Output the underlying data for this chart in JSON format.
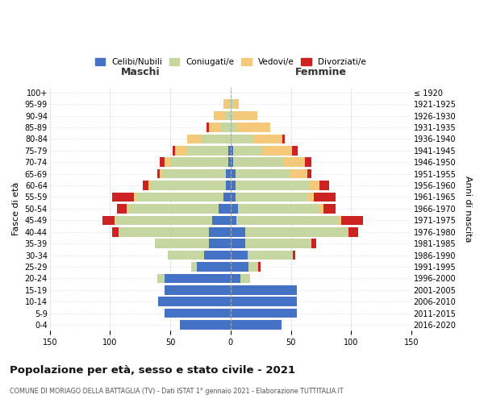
{
  "age_groups": [
    "0-4",
    "5-9",
    "10-14",
    "15-19",
    "20-24",
    "25-29",
    "30-34",
    "35-39",
    "40-44",
    "45-49",
    "50-54",
    "55-59",
    "60-64",
    "65-69",
    "70-74",
    "75-79",
    "80-84",
    "85-89",
    "90-94",
    "95-99",
    "100+"
  ],
  "birth_years": [
    "2016-2020",
    "2011-2015",
    "2006-2010",
    "2001-2005",
    "1996-2000",
    "1991-1995",
    "1986-1990",
    "1981-1985",
    "1976-1980",
    "1971-1975",
    "1966-1970",
    "1961-1965",
    "1956-1960",
    "1951-1955",
    "1946-1950",
    "1941-1945",
    "1936-1940",
    "1931-1935",
    "1926-1930",
    "1921-1925",
    "≤ 1920"
  ],
  "males": {
    "celibi": [
      42,
      55,
      60,
      55,
      55,
      28,
      22,
      18,
      18,
      15,
      10,
      6,
      4,
      4,
      2,
      2,
      0,
      0,
      0,
      0,
      0
    ],
    "coniugati": [
      0,
      0,
      0,
      0,
      6,
      5,
      30,
      45,
      75,
      80,
      75,
      72,
      62,
      52,
      48,
      34,
      24,
      8,
      4,
      2,
      0
    ],
    "vedovi": [
      0,
      0,
      0,
      0,
      0,
      0,
      0,
      0,
      0,
      1,
      1,
      2,
      2,
      3,
      5,
      10,
      12,
      10,
      10,
      4,
      0
    ],
    "divorziati": [
      0,
      0,
      0,
      0,
      0,
      0,
      0,
      0,
      5,
      10,
      8,
      18,
      5,
      2,
      4,
      2,
      0,
      2,
      0,
      0,
      0
    ]
  },
  "females": {
    "nubili": [
      42,
      55,
      55,
      55,
      8,
      15,
      14,
      12,
      12,
      5,
      6,
      4,
      4,
      4,
      2,
      2,
      0,
      0,
      0,
      0,
      0
    ],
    "coniugate": [
      0,
      0,
      0,
      0,
      8,
      8,
      38,
      55,
      85,
      85,
      68,
      60,
      62,
      45,
      42,
      24,
      18,
      5,
      2,
      2,
      0
    ],
    "vedove": [
      0,
      0,
      0,
      0,
      0,
      0,
      0,
      0,
      1,
      2,
      3,
      5,
      8,
      15,
      18,
      25,
      25,
      28,
      20,
      5,
      0
    ],
    "divorziate": [
      0,
      0,
      0,
      0,
      0,
      2,
      2,
      4,
      8,
      18,
      10,
      18,
      8,
      3,
      5,
      5,
      2,
      0,
      0,
      0,
      0
    ]
  },
  "colors": {
    "celibi_nubili": "#4472C4",
    "coniugati": "#C5D6A0",
    "vedovi": "#F5C97A",
    "divorziati": "#CC2222"
  },
  "xlim": 150,
  "title": "Popolazione per età, sesso e stato civile - 2021",
  "subtitle": "COMUNE DI MORIAGO DELLA BATTAGLIA (TV) - Dati ISTAT 1° gennaio 2021 - Elaborazione TUTTITALIA.IT",
  "ylabel": "Fasce di età",
  "ylabel_right": "Anni di nascita",
  "maschi_label": "Maschi",
  "femmine_label": "Femmine",
  "legend_labels": [
    "Celibi/Nubili",
    "Coniugati/e",
    "Vedovi/e",
    "Divorziati/e"
  ],
  "background_color": "#ffffff",
  "grid_color": "#cccccc"
}
